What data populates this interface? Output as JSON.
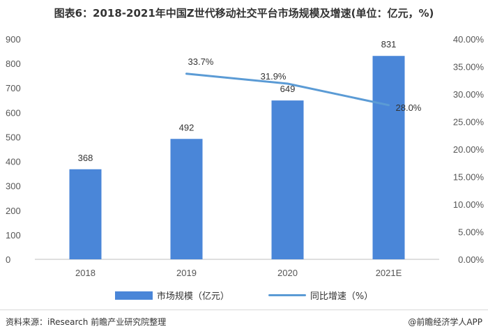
{
  "title": "图表6：2018-2021年中国Z世代移动社交平台市场规模及增速(单位：亿元，%)",
  "chart_data": {
    "type": "bar",
    "categories": [
      "2018",
      "2019",
      "2020",
      "2021E"
    ],
    "series": [
      {
        "name": "市场规模（亿元）",
        "type": "bar",
        "axis": "left",
        "values": [
          368,
          492,
          649,
          831
        ],
        "color": "#4a86d8"
      },
      {
        "name": "同比增速（%）",
        "type": "line",
        "axis": "right",
        "x": [
          "2019",
          "2020",
          "2021E"
        ],
        "values": [
          33.7,
          31.9,
          28.0
        ],
        "color": "#5b9bd5"
      }
    ],
    "y_left": {
      "ylim": [
        0,
        900
      ],
      "ticks": [
        "0",
        "100",
        "200",
        "300",
        "400",
        "500",
        "600",
        "700",
        "800",
        "900"
      ]
    },
    "y_right": {
      "ylim": [
        0,
        40
      ],
      "ticks": [
        "0.00%",
        "5.00%",
        "10.00%",
        "15.00%",
        "20.00%",
        "25.00%",
        "30.00%",
        "35.00%",
        "40.00%"
      ]
    },
    "bar_labels": [
      "368",
      "492",
      "649",
      "831"
    ],
    "line_labels": [
      "33.7%",
      "31.9%",
      "28.0%"
    ],
    "grid": false,
    "legend_position": "bottom"
  },
  "source": "资料来源：iResearch 前瞻产业研究院整理",
  "credit": "@前瞻经济学人APP"
}
